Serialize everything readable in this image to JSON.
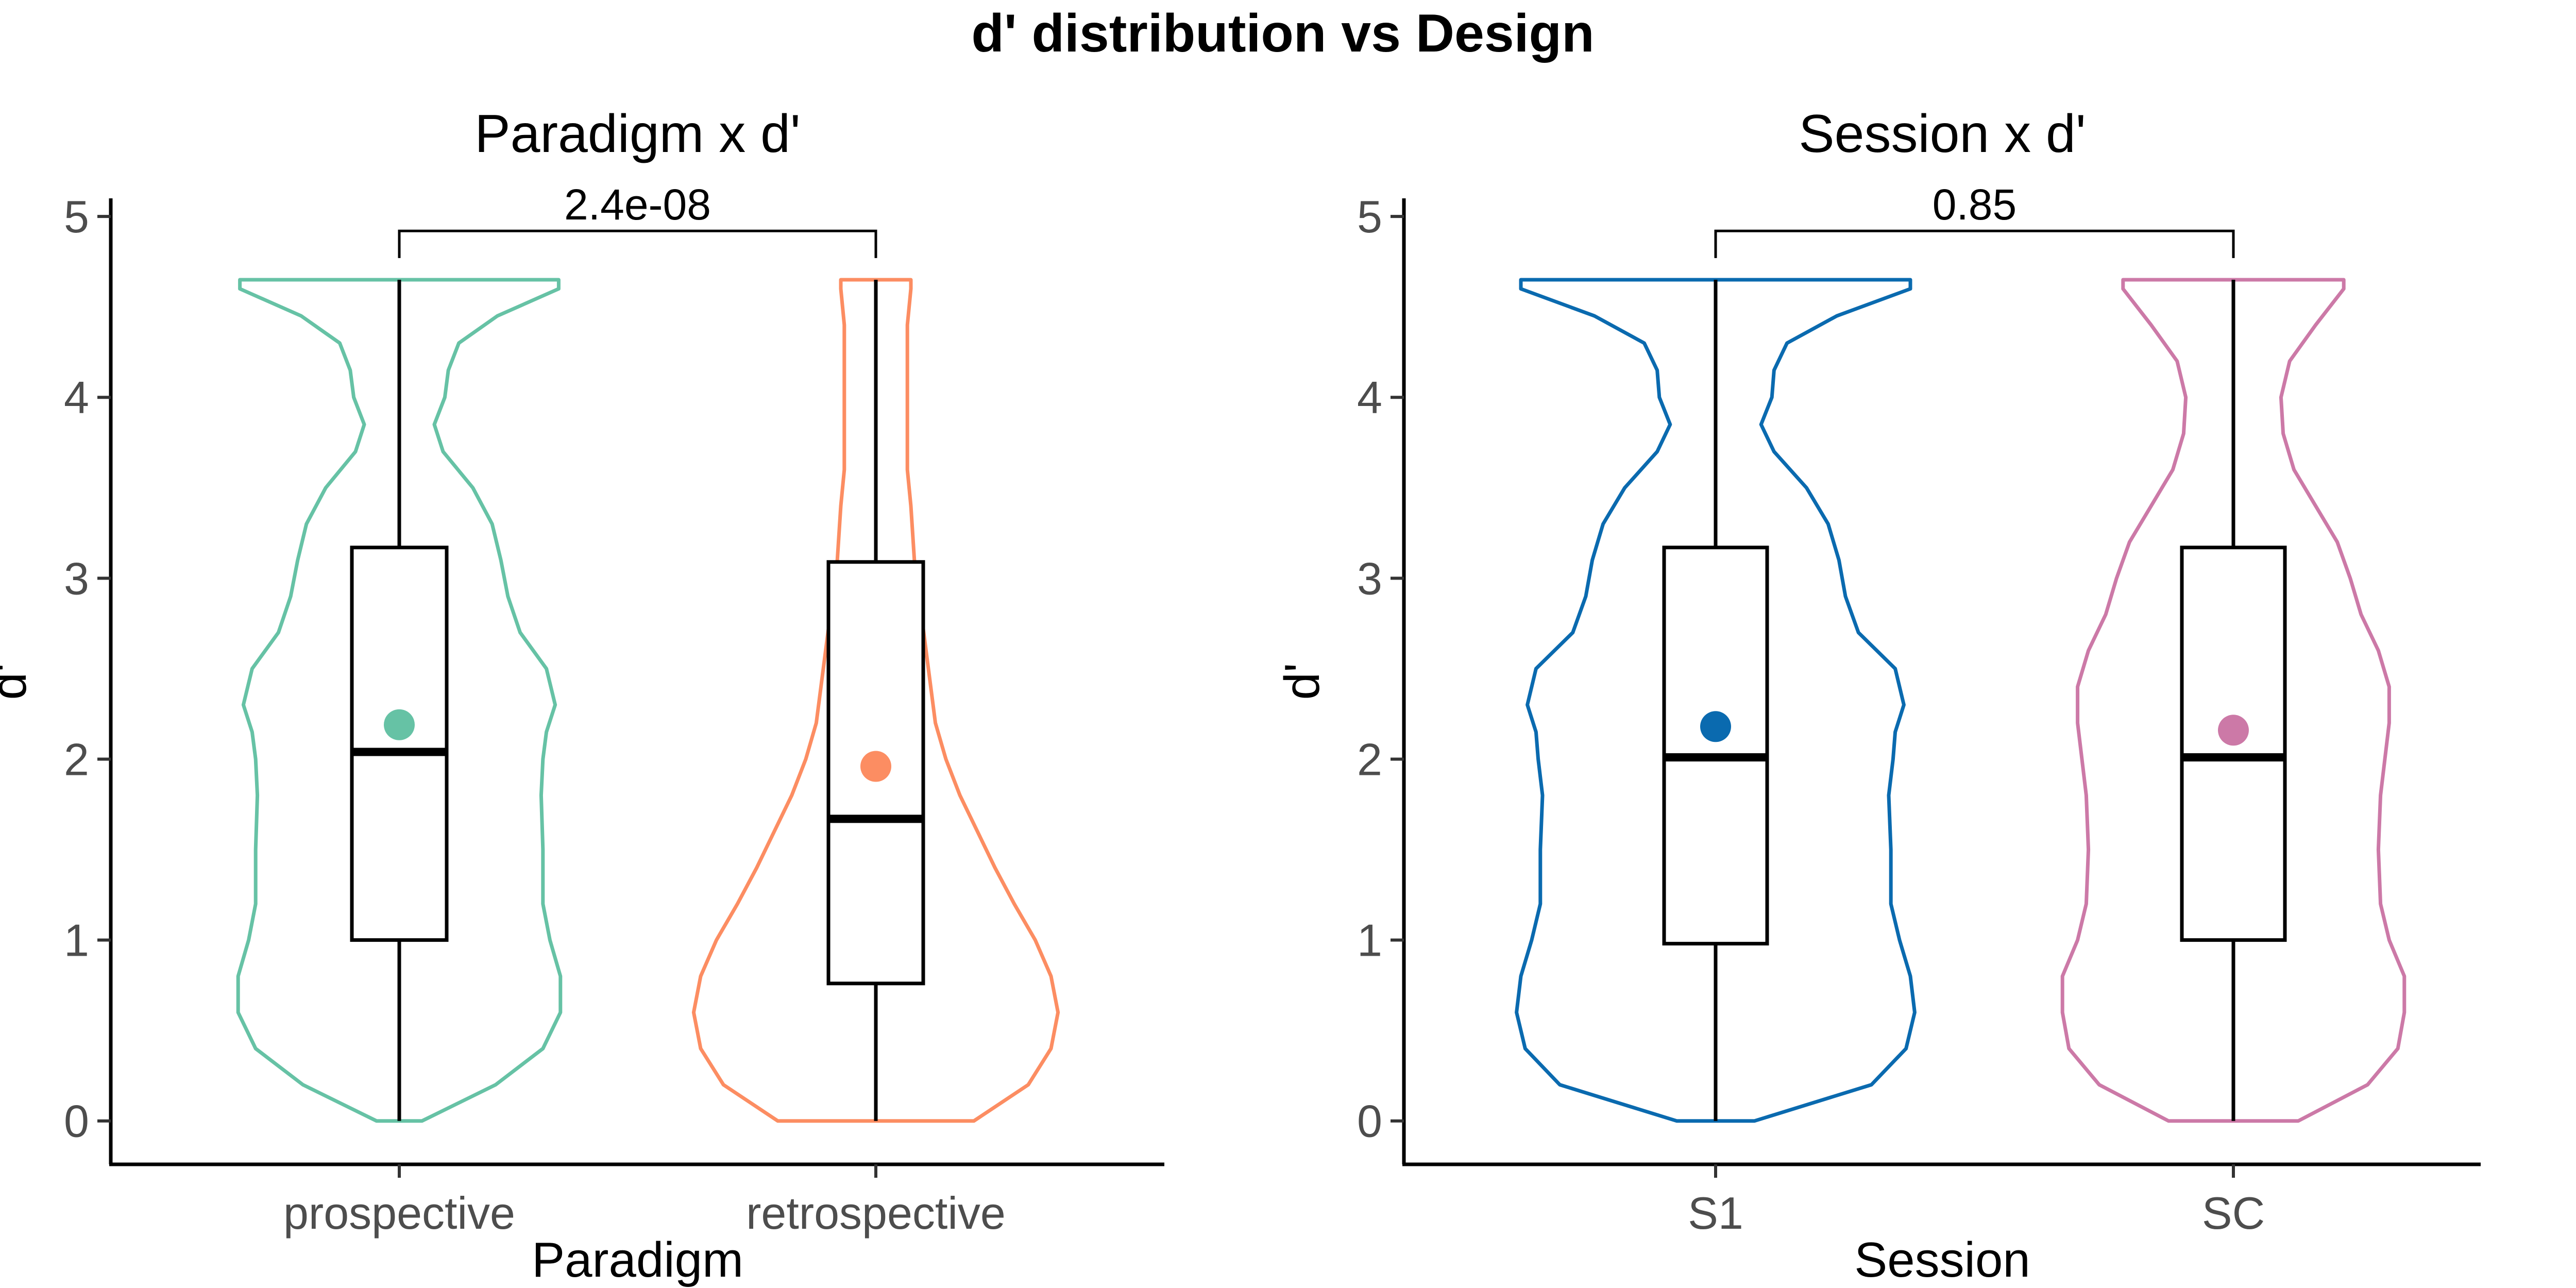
{
  "title": "d' distribution vs Design",
  "chart_data": [
    {
      "type": "violin",
      "title": "Paradigm x d'",
      "xlabel": "Paradigm",
      "ylabel": "d'",
      "ylim": [
        -0.24,
        5.1
      ],
      "yticks": [
        0,
        1,
        2,
        3,
        4,
        5
      ],
      "categories": [
        "prospective",
        "retrospective"
      ],
      "comparison": {
        "groups": [
          "prospective",
          "retrospective"
        ],
        "p_label": "2.4e-08"
      },
      "groups": [
        {
          "name": "prospective",
          "color": "#66c2a5",
          "min": 0,
          "q1": 1.0,
          "median": 2.04,
          "q3": 3.17,
          "max": 4.65,
          "mean": 2.19,
          "density": [
            [
              0,
              0.13
            ],
            [
              0.2,
              0.55
            ],
            [
              0.4,
              0.82
            ],
            [
              0.6,
              0.92
            ],
            [
              0.8,
              0.92
            ],
            [
              1.0,
              0.86
            ],
            [
              1.2,
              0.82
            ],
            [
              1.5,
              0.82
            ],
            [
              1.8,
              0.81
            ],
            [
              2.0,
              0.82
            ],
            [
              2.15,
              0.84
            ],
            [
              2.3,
              0.89
            ],
            [
              2.5,
              0.84
            ],
            [
              2.7,
              0.69
            ],
            [
              2.9,
              0.62
            ],
            [
              3.1,
              0.58
            ],
            [
              3.3,
              0.53
            ],
            [
              3.5,
              0.42
            ],
            [
              3.7,
              0.25
            ],
            [
              3.85,
              0.2
            ],
            [
              4.0,
              0.26
            ],
            [
              4.15,
              0.28
            ],
            [
              4.3,
              0.34
            ],
            [
              4.45,
              0.56
            ],
            [
              4.6,
              0.91
            ],
            [
              4.65,
              0.91
            ]
          ]
        },
        {
          "name": "retrospective",
          "color": "#fc8d62",
          "min": 0,
          "q1": 0.76,
          "median": 1.67,
          "q3": 3.09,
          "max": 4.65,
          "mean": 1.96,
          "density": [
            [
              0,
              0.56
            ],
            [
              0.2,
              0.87
            ],
            [
              0.4,
              1.0
            ],
            [
              0.6,
              1.04
            ],
            [
              0.8,
              1.0
            ],
            [
              1.0,
              0.91
            ],
            [
              1.2,
              0.79
            ],
            [
              1.4,
              0.68
            ],
            [
              1.6,
              0.58
            ],
            [
              1.8,
              0.48
            ],
            [
              2.0,
              0.4
            ],
            [
              2.2,
              0.34
            ],
            [
              2.5,
              0.3
            ],
            [
              2.8,
              0.26
            ],
            [
              3.1,
              0.22
            ],
            [
              3.4,
              0.2
            ],
            [
              3.6,
              0.18
            ],
            [
              3.8,
              0.18
            ],
            [
              4.0,
              0.18
            ],
            [
              4.2,
              0.18
            ],
            [
              4.4,
              0.18
            ],
            [
              4.6,
              0.2
            ],
            [
              4.65,
              0.2
            ]
          ]
        }
      ]
    },
    {
      "type": "violin",
      "title": "Session x d'",
      "xlabel": "Session",
      "ylabel": "d'",
      "ylim": [
        -0.24,
        5.1
      ],
      "yticks": [
        0,
        1,
        2,
        3,
        4,
        5
      ],
      "categories": [
        "S1",
        "SC"
      ],
      "comparison": {
        "groups": [
          "S1",
          "SC"
        ],
        "p_label": "0.85"
      },
      "groups": [
        {
          "name": "S1",
          "color": "#0a6aaf",
          "min": 0,
          "q1": 0.98,
          "median": 2.01,
          "q3": 3.17,
          "max": 4.65,
          "mean": 2.18,
          "density": [
            [
              0,
              0.18
            ],
            [
              0.2,
              0.72
            ],
            [
              0.4,
              0.88
            ],
            [
              0.6,
              0.92
            ],
            [
              0.8,
              0.9
            ],
            [
              1.0,
              0.85
            ],
            [
              1.2,
              0.81
            ],
            [
              1.5,
              0.81
            ],
            [
              1.8,
              0.8
            ],
            [
              2.0,
              0.82
            ],
            [
              2.15,
              0.83
            ],
            [
              2.3,
              0.87
            ],
            [
              2.5,
              0.83
            ],
            [
              2.7,
              0.66
            ],
            [
              2.9,
              0.6
            ],
            [
              3.1,
              0.57
            ],
            [
              3.3,
              0.52
            ],
            [
              3.5,
              0.42
            ],
            [
              3.7,
              0.27
            ],
            [
              3.85,
              0.21
            ],
            [
              4.0,
              0.26
            ],
            [
              4.15,
              0.27
            ],
            [
              4.3,
              0.33
            ],
            [
              4.45,
              0.56
            ],
            [
              4.6,
              0.9
            ],
            [
              4.65,
              0.9
            ]
          ]
        },
        {
          "name": "SC",
          "color": "#cc79a7",
          "min": 0,
          "q1": 1.0,
          "median": 2.01,
          "q3": 3.17,
          "max": 4.65,
          "mean": 2.16,
          "density": [
            [
              0,
              0.3
            ],
            [
              0.2,
              0.62
            ],
            [
              0.4,
              0.76
            ],
            [
              0.6,
              0.79
            ],
            [
              0.8,
              0.79
            ],
            [
              1.0,
              0.72
            ],
            [
              1.2,
              0.68
            ],
            [
              1.5,
              0.67
            ],
            [
              1.8,
              0.68
            ],
            [
              2.0,
              0.7
            ],
            [
              2.2,
              0.72
            ],
            [
              2.4,
              0.72
            ],
            [
              2.6,
              0.67
            ],
            [
              2.8,
              0.59
            ],
            [
              3.0,
              0.54
            ],
            [
              3.2,
              0.48
            ],
            [
              3.4,
              0.38
            ],
            [
              3.6,
              0.28
            ],
            [
              3.8,
              0.23
            ],
            [
              4.0,
              0.22
            ],
            [
              4.2,
              0.26
            ],
            [
              4.4,
              0.38
            ],
            [
              4.6,
              0.51
            ],
            [
              4.65,
              0.51
            ]
          ]
        }
      ]
    }
  ]
}
